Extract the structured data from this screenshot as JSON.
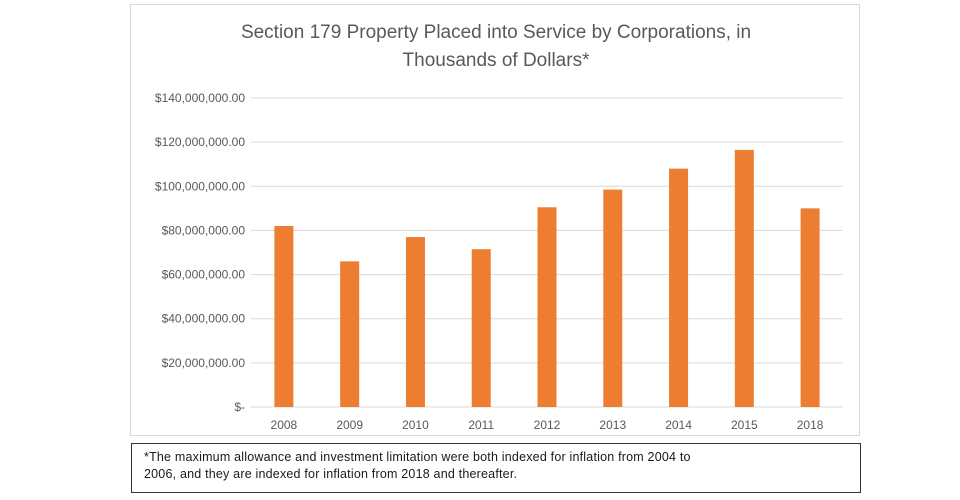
{
  "chart_data": {
    "type": "bar",
    "title_lines": [
      "Section 179 Property Placed into Service by Corporations, in",
      "Thousands of Dollars*"
    ],
    "categories": [
      "2008",
      "2009",
      "2010",
      "2011",
      "2012",
      "2013",
      "2014",
      "2015",
      "2018"
    ],
    "values": [
      82000000,
      66000000,
      77000000,
      71500000,
      90500000,
      98500000,
      108000000,
      116500000,
      90000000
    ],
    "ylim": [
      0,
      140000000
    ],
    "yticks": [
      0,
      20000000,
      40000000,
      60000000,
      80000000,
      100000000,
      120000000,
      140000000
    ],
    "ytick_labels": [
      "$-",
      "$20,000,000.00",
      "$40,000,000.00",
      "$60,000,000.00",
      "$80,000,000.00",
      "$100,000,000.00",
      "$120,000,000.00",
      "$140,000,000.00"
    ],
    "bar_color": "#ED7D31",
    "grid": true,
    "legend": "none"
  },
  "footnote": {
    "lines": [
      "*The maximum allowance and investment limitation were both indexed for inflation from 2004 to",
      "2006, and they are indexed for inflation from 2018 and thereafter."
    ]
  }
}
